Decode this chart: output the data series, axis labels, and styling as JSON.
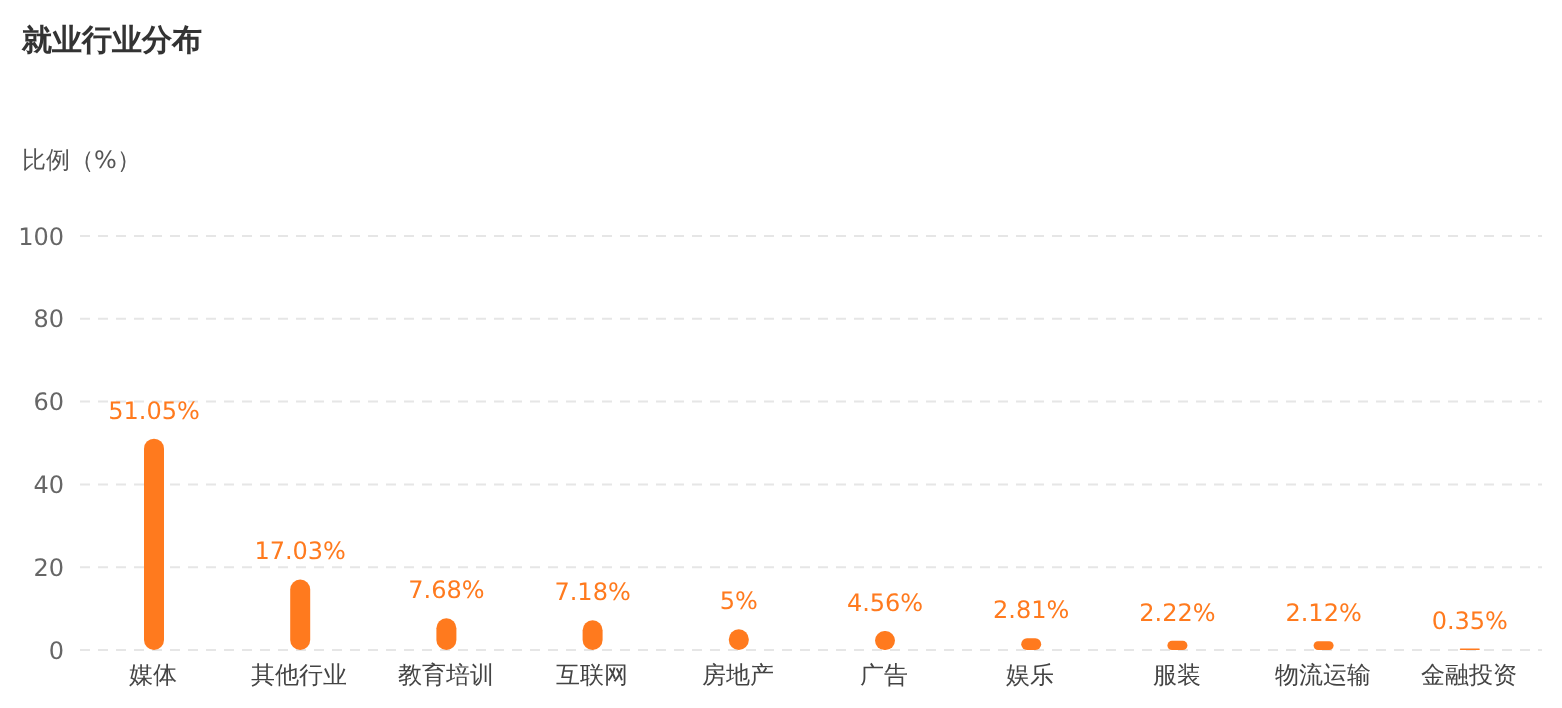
{
  "chart_data": {
    "type": "bar",
    "title": "就业行业分布",
    "ylabel": "比例（%）",
    "categories": [
      "媒体",
      "其他行业",
      "教育培训",
      "互联网",
      "房地产",
      "广告",
      "娱乐",
      "服装",
      "物流运输",
      "金融投资"
    ],
    "values": [
      51.05,
      17.03,
      7.68,
      7.18,
      5,
      4.56,
      2.81,
      2.22,
      2.12,
      0.35
    ],
    "value_labels": [
      "51.05%",
      "17.03%",
      "7.68%",
      "7.18%",
      "5%",
      "4.56%",
      "2.81%",
      "2.22%",
      "2.12%",
      "0.35%"
    ],
    "color": "#ff7a1e",
    "ylim": [
      0,
      100
    ],
    "yticks": [
      0,
      20,
      40,
      60,
      80,
      100
    ],
    "grid": "y",
    "legend": false
  }
}
